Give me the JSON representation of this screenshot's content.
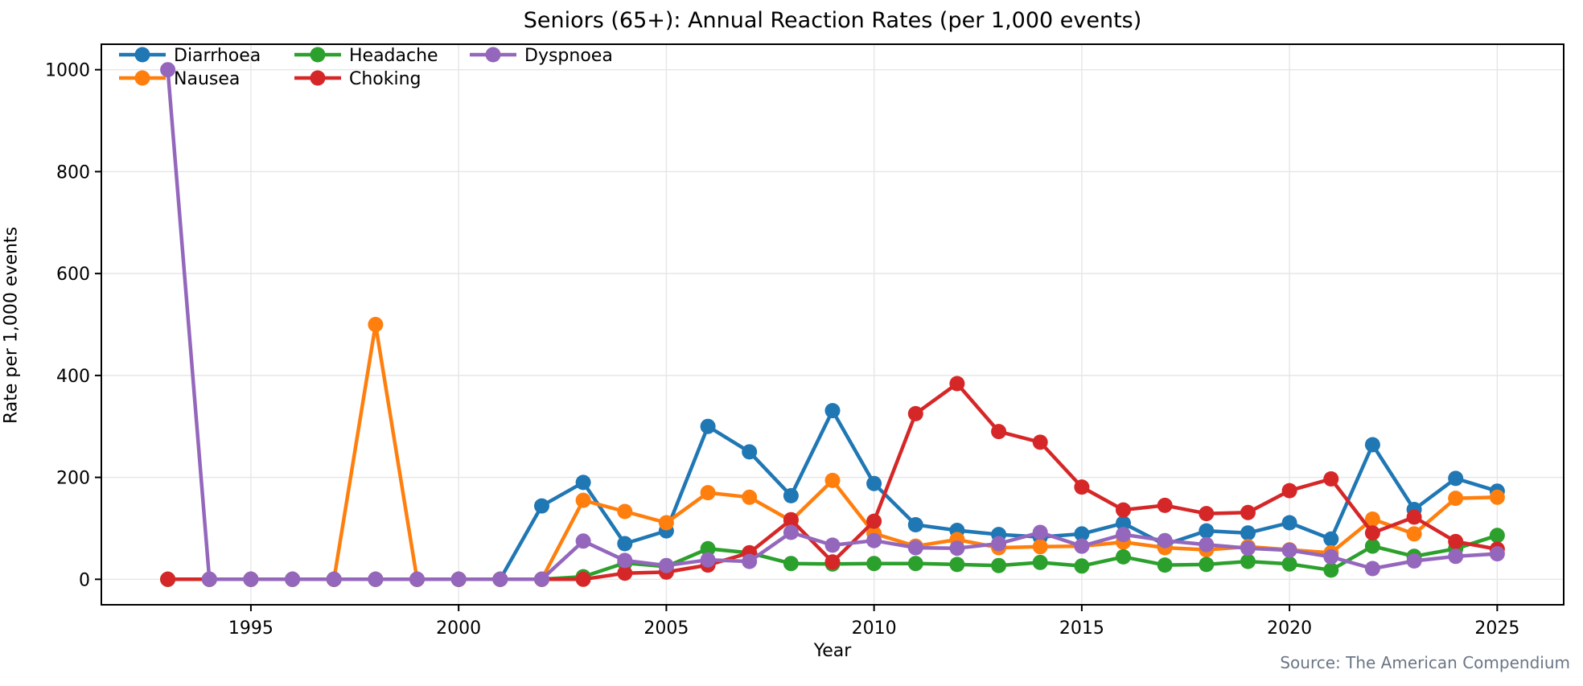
{
  "title": "Seniors (65+): Annual Reaction Rates (per 1,000 events)",
  "x_axis_label": "Year",
  "y_axis_label": "Rate per 1,000 events",
  "source_note": "Source: The American Compendium",
  "chart_data": {
    "type": "line",
    "title": "Seniors (65+): Annual Reaction Rates (per 1,000 events)",
    "xlabel": "Year",
    "ylabel": "Rate per 1,000 events",
    "x": [
      1993,
      1994,
      1995,
      1996,
      1997,
      1998,
      1999,
      2000,
      2001,
      2002,
      2003,
      2004,
      2005,
      2006,
      2007,
      2008,
      2009,
      2010,
      2011,
      2012,
      2013,
      2014,
      2015,
      2016,
      2017,
      2018,
      2019,
      2020,
      2021,
      2022,
      2023,
      2024,
      2025
    ],
    "x_ticks": [
      1995,
      2000,
      2005,
      2010,
      2015,
      2020,
      2025
    ],
    "y_ticks": [
      0,
      200,
      400,
      600,
      800,
      1000
    ],
    "xlim": [
      1991.4,
      2026.6
    ],
    "ylim": [
      -50,
      1050
    ],
    "grid": true,
    "legend_position": "upper-left",
    "legend_layout": "2 rows x 3 columns",
    "series": [
      {
        "name": "Diarrhoea",
        "color": "#1f77b4",
        "values": [
          0,
          0,
          0,
          0,
          0,
          0,
          0,
          0,
          0,
          144,
          190,
          70,
          95,
          300,
          250,
          164,
          331,
          188,
          107,
          96,
          88,
          83,
          89,
          110,
          68,
          95,
          91,
          111,
          79,
          264,
          137,
          198,
          173
        ]
      },
      {
        "name": "Nausea",
        "color": "#ff7f0e",
        "values": [
          0,
          0,
          0,
          0,
          0,
          500,
          0,
          0,
          0,
          0,
          155,
          133,
          111,
          170,
          161,
          115,
          194,
          90,
          65,
          78,
          62,
          64,
          65,
          73,
          62,
          58,
          64,
          58,
          52,
          118,
          89,
          159,
          161
        ]
      },
      {
        "name": "Headache",
        "color": "#2ca02c",
        "values": [
          0,
          0,
          0,
          0,
          0,
          0,
          0,
          0,
          0,
          0,
          5,
          32,
          25,
          60,
          52,
          31,
          30,
          31,
          31,
          29,
          27,
          33,
          26,
          44,
          28,
          29,
          35,
          30,
          18,
          65,
          45,
          60,
          86
        ]
      },
      {
        "name": "Choking",
        "color": "#d62728",
        "values": [
          0,
          0,
          0,
          0,
          0,
          0,
          0,
          0,
          0,
          0,
          0,
          12,
          14,
          28,
          52,
          117,
          34,
          114,
          325,
          384,
          290,
          269,
          181,
          136,
          145,
          129,
          131,
          174,
          197,
          91,
          122,
          74,
          59
        ]
      },
      {
        "name": "Dyspnoea",
        "color": "#9467bd",
        "values": [
          1000,
          0,
          0,
          0,
          0,
          0,
          0,
          0,
          0,
          0,
          75,
          37,
          27,
          38,
          35,
          92,
          67,
          76,
          62,
          61,
          70,
          92,
          65,
          88,
          76,
          68,
          61,
          57,
          44,
          21,
          36,
          45,
          50
        ]
      }
    ],
    "colors": {
      "background": "#ffffff",
      "grid": "#e6e6e6",
      "spine": "#000000",
      "tick_label": "#000000",
      "source_text": "#6b7685"
    }
  }
}
